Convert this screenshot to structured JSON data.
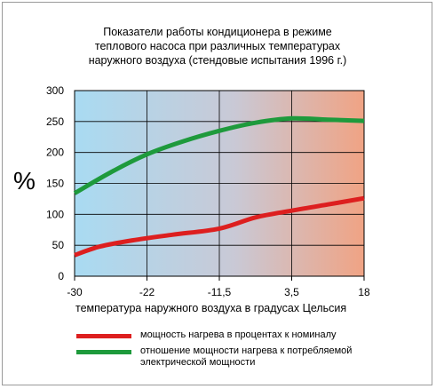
{
  "title_lines": [
    "Показатели работы кондиционера в режиме",
    "теплового насоса при различных температурах",
    "наружного воздуха (стендовые испытания 1996 г.)"
  ],
  "colors": {
    "red_series": "#dd1f1f",
    "green_series": "#1e9a3c",
    "bg_cold": "#a9dbf2",
    "bg_hot": "#f0a384"
  },
  "chart_data": {
    "type": "line",
    "title": "Показатели работы кондиционера в режиме теплового насоса при различных температурах наружного воздуха (стендовые испытания 1996 г.)",
    "xlabel": "температура наружного воздуха в градусах Цельсия",
    "ylabel": "%",
    "x_ticks": [
      "-30",
      "-22",
      "-11,5",
      "3,5",
      "18"
    ],
    "y_ticks": [
      0,
      50,
      100,
      150,
      200,
      250,
      300
    ],
    "ylim": [
      0,
      300
    ],
    "grid": true,
    "legend_position": "bottom",
    "series": [
      {
        "name": "мощность нагрева в процентах к номиналу",
        "color": "#dd1f1f",
        "points": [
          [
            0,
            34
          ],
          [
            0.35,
            48
          ],
          [
            0.8,
            58
          ],
          [
            1.35,
            67
          ],
          [
            2.0,
            77
          ],
          [
            2.5,
            95
          ],
          [
            3.0,
            106
          ],
          [
            3.5,
            116
          ],
          [
            4.0,
            126
          ]
        ]
      },
      {
        "name": "отношение мощности нагрева к потребляемой электрической мощности",
        "color": "#1e9a3c",
        "points": [
          [
            0,
            134
          ],
          [
            0.5,
            168
          ],
          [
            1.0,
            197
          ],
          [
            1.5,
            218
          ],
          [
            2.0,
            235
          ],
          [
            2.5,
            248
          ],
          [
            3.0,
            255
          ],
          [
            3.5,
            253
          ],
          [
            4.0,
            251
          ]
        ]
      }
    ]
  },
  "legend": [
    {
      "label": "мощность нагрева в процентах к номиналу",
      "color": "#dd1f1f"
    },
    {
      "label": "отношение мощности нагрева к потребляемой электрической мощности",
      "color": "#1e9a3c"
    }
  ]
}
